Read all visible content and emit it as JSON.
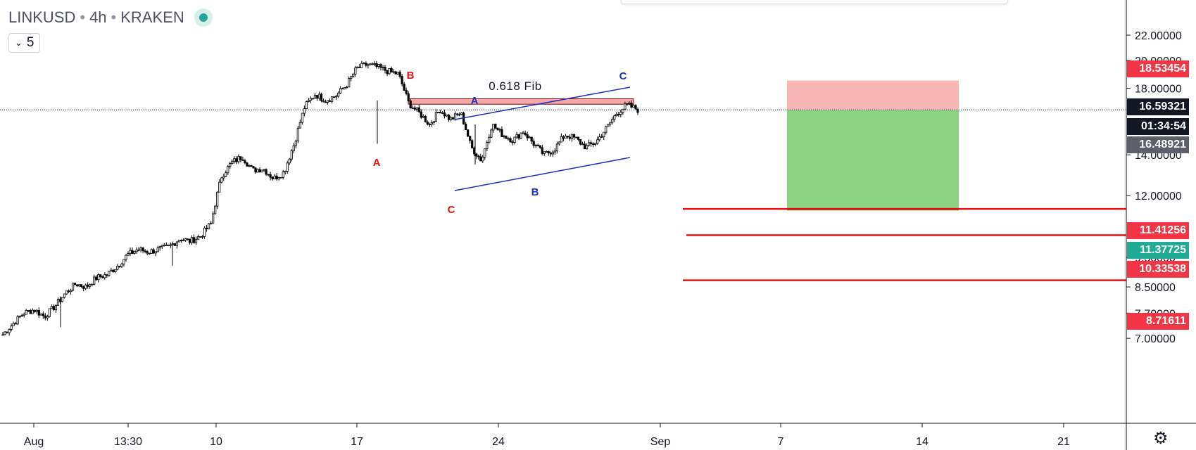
{
  "header": {
    "symbol": "LINKUSD",
    "interval": "4h",
    "exchange": "KRAKEN",
    "separator": "•",
    "status_color": "#26a69a",
    "collapse_count": "5"
  },
  "chart_data": {
    "type": "candlestick",
    "y_axis": {
      "scale": "log",
      "range": [
        6.3,
        22.4
      ],
      "ticks": [
        "22.00000",
        "20.00000",
        "18.00000",
        "14.00000",
        "12.00000",
        "9.50000",
        "8.50000",
        "7.70000",
        "7.00000"
      ]
    },
    "x_axis": {
      "ticks": [
        "Aug",
        "13:30",
        "10",
        "17",
        "24",
        "Sep",
        "7",
        "14",
        "21"
      ]
    },
    "current_price": 16.59321,
    "price_labels": [
      {
        "text": "18.53454",
        "color": "#f23645"
      },
      {
        "text": "16.59321",
        "color": "#131722"
      },
      {
        "text": "01:34:54",
        "color": "#131722"
      },
      {
        "text": "16.48921",
        "color": "#5d606b"
      },
      {
        "text": "11.41256",
        "color": "#f23645"
      },
      {
        "text": "11.37725",
        "color": "#22ab94"
      },
      {
        "text": "10.33538",
        "color": "#f23645"
      },
      {
        "text": "8.71611",
        "color": "#f23645"
      }
    ],
    "price_path_close": [
      7.1,
      7.4,
      7.7,
      7.8,
      7.6,
      7.9,
      8.3,
      8.6,
      8.5,
      8.8,
      8.9,
      9.2,
      9.6,
      9.8,
      9.7,
      9.8,
      9.9,
      10.2,
      10.1,
      10.3,
      10.8,
      12.9,
      13.6,
      13.9,
      13.2,
      13.3,
      12.8,
      13.1,
      14.6,
      16.8,
      17.6,
      17.2,
      17.5,
      18.2,
      19.4,
      19.7,
      19.5,
      19.2,
      19.0,
      17.0,
      16.4,
      15.7,
      16.6,
      16.0,
      16.4,
      14.4,
      13.7,
      15.7,
      15.1,
      14.8,
      15.3,
      14.6,
      14.0,
      14.3,
      15.1,
      14.9,
      14.4,
      14.7,
      15.5,
      16.4,
      16.9,
      16.6
    ],
    "rr_box": {
      "entry": 16.59321,
      "stop": 18.53454,
      "target": 11.37725,
      "loss_color": "#f7b7b7",
      "profit_color": "#8ad383"
    },
    "horizontal_lines": [
      11.41256,
      10.33538,
      8.71611
    ],
    "fib_zone": {
      "label": "0.618 Fib",
      "top": 17.3,
      "bottom": 16.95
    },
    "wave_labels": [
      {
        "text": "B",
        "color": "#e31313"
      },
      {
        "text": "A",
        "color": "#e31313"
      },
      {
        "text": "C",
        "color": "#e31313"
      },
      {
        "text": "A",
        "color": "#1d2fc4"
      },
      {
        "text": "B",
        "color": "#1d2fc4"
      },
      {
        "text": "C",
        "color": "#1d2fc4"
      }
    ],
    "up_color": "#ffffff",
    "down_color": "#000000"
  }
}
